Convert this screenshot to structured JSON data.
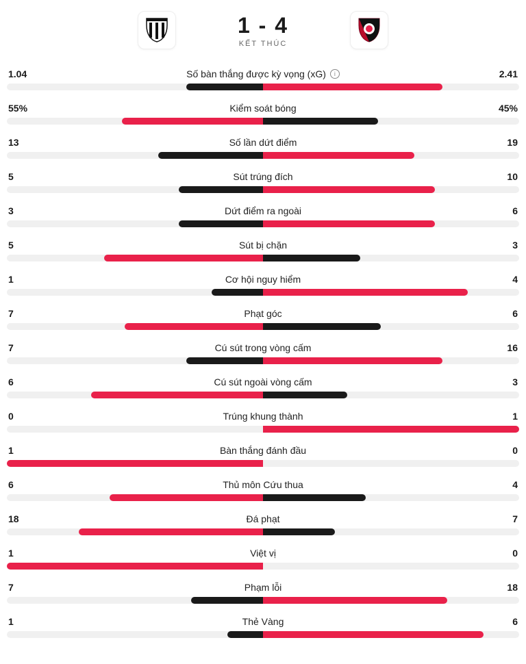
{
  "header": {
    "home_score": "1",
    "away_score": "4",
    "separator": "-",
    "status": "KẾT THÚC"
  },
  "colors": {
    "home": "#1a1a1a",
    "away": "#e9214a",
    "track": "#f0f0f0",
    "text": "#1a1a1a",
    "muted": "#666666",
    "bg": "#ffffff"
  },
  "team_logos": {
    "home": {
      "name": "home-team-logo",
      "type": "newcastle"
    },
    "away": {
      "name": "away-team-logo",
      "type": "bournemouth"
    }
  },
  "stats": [
    {
      "name": "Số bàn thắng được kỳ vọng (xG)",
      "info": true,
      "home_display": "1.04",
      "away_display": "2.41",
      "home_pct": 30,
      "away_pct": 70,
      "winner": "away"
    },
    {
      "name": "Kiểm soát bóng",
      "home_display": "55%",
      "away_display": "45%",
      "home_pct": 55,
      "away_pct": 45,
      "winner": "home"
    },
    {
      "name": "Số lần dứt điểm",
      "home_display": "13",
      "away_display": "19",
      "home_pct": 41,
      "away_pct": 59,
      "winner": "away"
    },
    {
      "name": "Sút trúng đích",
      "home_display": "5",
      "away_display": "10",
      "home_pct": 33,
      "away_pct": 67,
      "winner": "away"
    },
    {
      "name": "Dứt điểm ra ngoài",
      "home_display": "3",
      "away_display": "6",
      "home_pct": 33,
      "away_pct": 67,
      "winner": "away"
    },
    {
      "name": "Sút bị chặn",
      "home_display": "5",
      "away_display": "3",
      "home_pct": 62,
      "away_pct": 38,
      "winner": "home"
    },
    {
      "name": "Cơ hội nguy hiểm",
      "home_display": "1",
      "away_display": "4",
      "home_pct": 20,
      "away_pct": 80,
      "winner": "away"
    },
    {
      "name": "Phạt góc",
      "home_display": "7",
      "away_display": "6",
      "home_pct": 54,
      "away_pct": 46,
      "winner": "home"
    },
    {
      "name": "Cú sút trong vòng cấm",
      "home_display": "7",
      "away_display": "16",
      "home_pct": 30,
      "away_pct": 70,
      "winner": "away"
    },
    {
      "name": "Cú sút ngoài vòng cấm",
      "home_display": "6",
      "away_display": "3",
      "home_pct": 67,
      "away_pct": 33,
      "winner": "home"
    },
    {
      "name": "Trúng khung thành",
      "home_display": "0",
      "away_display": "1",
      "home_pct": 0,
      "away_pct": 100,
      "winner": "away"
    },
    {
      "name": "Bàn thắng đánh đầu",
      "home_display": "1",
      "away_display": "0",
      "home_pct": 100,
      "away_pct": 0,
      "winner": "home"
    },
    {
      "name": "Thủ môn Cứu thua",
      "home_display": "6",
      "away_display": "4",
      "home_pct": 60,
      "away_pct": 40,
      "winner": "home"
    },
    {
      "name": "Đá phạt",
      "home_display": "18",
      "away_display": "7",
      "home_pct": 72,
      "away_pct": 28,
      "winner": "home"
    },
    {
      "name": "Việt vị",
      "home_display": "1",
      "away_display": "0",
      "home_pct": 100,
      "away_pct": 0,
      "winner": "home"
    },
    {
      "name": "Phạm lỗi",
      "home_display": "7",
      "away_display": "18",
      "home_pct": 28,
      "away_pct": 72,
      "winner": "away"
    },
    {
      "name": "Thẻ Vàng",
      "home_display": "1",
      "away_display": "6",
      "home_pct": 14,
      "away_pct": 86,
      "winner": "away"
    }
  ]
}
